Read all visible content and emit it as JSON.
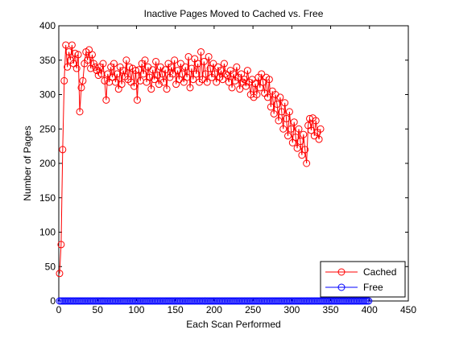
{
  "chart_data": {
    "type": "line",
    "title": "Inactive Pages Moved to Cached vs. Free",
    "xlabel": "Each Scan Performed",
    "ylabel": "Number of Pages",
    "xlim": [
      0,
      450
    ],
    "ylim": [
      0,
      400
    ],
    "x_ticks": [
      0,
      50,
      100,
      150,
      200,
      250,
      300,
      350,
      400,
      450
    ],
    "y_ticks": [
      0,
      50,
      100,
      150,
      200,
      250,
      300,
      350,
      400
    ],
    "grid": false,
    "legend_location": "bottom-right",
    "series": [
      {
        "name": "Cached",
        "color": "#ff0000",
        "marker": "open-circle",
        "x_start": 1,
        "x_step": 2,
        "values": [
          40,
          82,
          220,
          320,
          372,
          340,
          362,
          350,
          372,
          345,
          360,
          338,
          358,
          275,
          310,
          320,
          345,
          362,
          350,
          365,
          338,
          358,
          345,
          340,
          335,
          328,
          340,
          330,
          345,
          320,
          292,
          330,
          318,
          340,
          325,
          345,
          318,
          330,
          308,
          340,
          315,
          335,
          326,
          350,
          322,
          340,
          318,
          338,
          312,
          335,
          292,
          336,
          320,
          345,
          330,
          350,
          318,
          340,
          325,
          308,
          336,
          322,
          348,
          328,
          315,
          340,
          330,
          318,
          336,
          308,
          345,
          325,
          340,
          330,
          350,
          315,
          335,
          322,
          345,
          330,
          318,
          340,
          325,
          355,
          310,
          338,
          322,
          352,
          330,
          345,
          318,
          362,
          322,
          348,
          330,
          318,
          355,
          338,
          325,
          345,
          330,
          318,
          340,
          325,
          335,
          322,
          345,
          330,
          328,
          318,
          335,
          310,
          330,
          320,
          340,
          325,
          308,
          330,
          318,
          322,
          312,
          335,
          318,
          300,
          322,
          296,
          316,
          300,
          325,
          310,
          330,
          318,
          302,
          325,
          296,
          322,
          282,
          305,
          272,
          300,
          286,
          262,
          296,
          275,
          250,
          288,
          265,
          240,
          275,
          250,
          230,
          260,
          238,
          222,
          250,
          232,
          212,
          242,
          220,
          200,
          255,
          265,
          248,
          266,
          240,
          262,
          245,
          235,
          250
        ]
      },
      {
        "name": "Free",
        "color": "#0000ff",
        "marker": "open-circle",
        "x_start": 1,
        "x_step": 2,
        "constant_value": 0,
        "count": 200
      }
    ]
  }
}
